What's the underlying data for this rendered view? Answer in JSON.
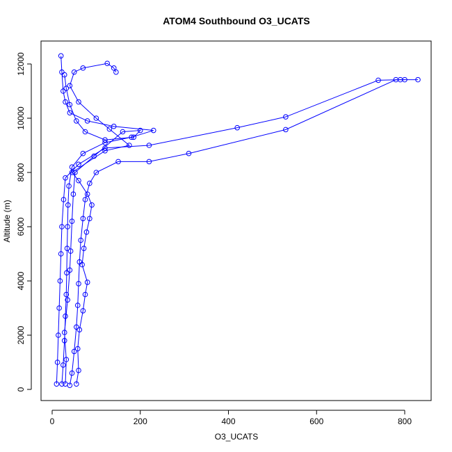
{
  "chart_data": {
    "type": "line",
    "title": "ATOM4 Southbound O3_UCATS",
    "xlabel": "O3_UCATS",
    "ylabel": "Altitude (m)",
    "xlim": [
      0,
      830
    ],
    "ylim": [
      0,
      12300
    ],
    "x_ticks": [
      0,
      200,
      400,
      600,
      800
    ],
    "y_ticks": [
      0,
      2000,
      4000,
      6000,
      8000,
      10000,
      12000
    ],
    "series_color": "#0000ff",
    "marker": "open-circle",
    "grid": false,
    "series": [
      {
        "name": "",
        "points": [
          [
            22,
            200
          ],
          [
            25,
            900
          ],
          [
            28,
            1800
          ],
          [
            30,
            2700
          ],
          [
            32,
            3500
          ],
          [
            33,
            4300
          ],
          [
            34,
            5200
          ],
          [
            35,
            6000
          ],
          [
            36,
            6800
          ],
          [
            38,
            7500
          ],
          [
            45,
            8200
          ],
          [
            70,
            8700
          ],
          [
            120,
            9100
          ],
          [
            180,
            9300
          ],
          [
            230,
            9550
          ],
          [
            140,
            9700
          ],
          [
            80,
            9900
          ],
          [
            40,
            10200
          ],
          [
            30,
            10600
          ],
          [
            25,
            11000
          ],
          [
            22,
            11700
          ],
          [
            20,
            12300
          ]
        ]
      },
      {
        "name": "",
        "points": [
          [
            10,
            200
          ],
          [
            12,
            1000
          ],
          [
            14,
            2000
          ],
          [
            16,
            3000
          ],
          [
            18,
            4000
          ],
          [
            20,
            5000
          ],
          [
            22,
            6000
          ],
          [
            26,
            7000
          ],
          [
            30,
            7800
          ],
          [
            60,
            8300
          ],
          [
            120,
            8900
          ],
          [
            220,
            9000
          ],
          [
            420,
            9650
          ],
          [
            530,
            10050
          ],
          [
            740,
            11400
          ],
          [
            790,
            11420
          ],
          [
            830,
            11420
          ]
        ]
      },
      {
        "name": "",
        "points": [
          [
            40,
            150
          ],
          [
            45,
            600
          ],
          [
            50,
            1400
          ],
          [
            55,
            2300
          ],
          [
            58,
            3100
          ],
          [
            60,
            3900
          ],
          [
            62,
            4700
          ],
          [
            65,
            5500
          ],
          [
            70,
            6300
          ],
          [
            75,
            7000
          ],
          [
            85,
            7600
          ],
          [
            100,
            8000
          ],
          [
            150,
            8400
          ],
          [
            220,
            8400
          ],
          [
            310,
            8700
          ],
          [
            530,
            9580
          ],
          [
            780,
            11420
          ],
          [
            800,
            11420
          ]
        ]
      },
      {
        "name": "",
        "points": [
          [
            55,
            200
          ],
          [
            60,
            700
          ],
          [
            58,
            1500
          ],
          [
            62,
            2200
          ],
          [
            70,
            2900
          ],
          [
            75,
            3500
          ],
          [
            80,
            3950
          ],
          [
            68,
            4600
          ],
          [
            72,
            5200
          ],
          [
            78,
            5800
          ],
          [
            85,
            6300
          ],
          [
            90,
            6800
          ],
          [
            80,
            7200
          ],
          [
            60,
            7700
          ],
          [
            45,
            8000
          ],
          [
            120,
            8800
          ],
          [
            175,
            9000
          ],
          [
            130,
            9600
          ],
          [
            100,
            10000
          ],
          [
            60,
            10600
          ],
          [
            40,
            11200
          ],
          [
            50,
            11700
          ],
          [
            70,
            11850
          ],
          [
            125,
            12020
          ],
          [
            140,
            11850
          ],
          [
            145,
            11700
          ]
        ]
      },
      {
        "name": "",
        "points": [
          [
            30,
            200
          ],
          [
            32,
            1100
          ],
          [
            28,
            2100
          ],
          [
            35,
            3300
          ],
          [
            40,
            4400
          ],
          [
            42,
            5100
          ],
          [
            45,
            6200
          ],
          [
            48,
            7200
          ],
          [
            52,
            8000
          ],
          [
            95,
            8600
          ],
          [
            160,
            9500
          ],
          [
            200,
            9550
          ],
          [
            185,
            9300
          ],
          [
            120,
            9200
          ],
          [
            75,
            9500
          ],
          [
            55,
            9900
          ],
          [
            40,
            10500
          ],
          [
            32,
            11100
          ],
          [
            28,
            11600
          ]
        ]
      }
    ]
  }
}
